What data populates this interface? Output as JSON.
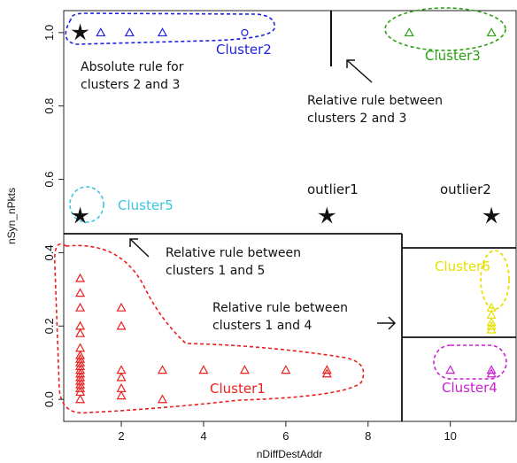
{
  "chart_data": {
    "type": "scatter",
    "xlabel": "nDiffDestAddr",
    "ylabel": "nSyn_nPkts",
    "xlim": [
      0.6,
      11.6
    ],
    "ylim": [
      -0.06,
      1.06
    ],
    "x_ticks": [
      2,
      4,
      6,
      8,
      10
    ],
    "y_ticks": [
      0.0,
      0.2,
      0.4,
      0.6,
      0.8,
      1.0
    ],
    "x_tick_labels": [
      "2",
      "4",
      "6",
      "8",
      "10"
    ],
    "y_tick_labels": [
      "0.0",
      "0.2",
      "0.4",
      "0.6",
      "0.8",
      "1.0"
    ],
    "grid": false,
    "colors": {
      "red": "#e8201c",
      "blue": "#1d23e0",
      "green": "#2aa012",
      "yellow": "#e6e000",
      "magenta": "#c81fd1",
      "cyan": "#3ac5e0",
      "black": "#111111"
    },
    "points": [
      {
        "x": 1,
        "y": 1.0,
        "color": "black",
        "marker": "star"
      },
      {
        "x": 1.5,
        "y": 1.0,
        "color": "blue",
        "marker": "triangle"
      },
      {
        "x": 2.2,
        "y": 1.0,
        "color": "blue",
        "marker": "triangle"
      },
      {
        "x": 3.0,
        "y": 1.0,
        "color": "blue",
        "marker": "triangle"
      },
      {
        "x": 5.0,
        "y": 1.0,
        "color": "blue",
        "marker": "circle"
      },
      {
        "x": 9.0,
        "y": 1.0,
        "color": "green",
        "marker": "triangle"
      },
      {
        "x": 11.0,
        "y": 1.0,
        "color": "green",
        "marker": "triangle"
      },
      {
        "x": 1.0,
        "y": 0.5,
        "color": "black",
        "marker": "star"
      },
      {
        "x": 7.0,
        "y": 0.5,
        "color": "black",
        "marker": "star"
      },
      {
        "x": 11.0,
        "y": 0.5,
        "color": "black",
        "marker": "star"
      },
      {
        "x": 1,
        "y": 0.33,
        "color": "red",
        "marker": "triangle"
      },
      {
        "x": 1,
        "y": 0.29,
        "color": "red",
        "marker": "triangle"
      },
      {
        "x": 1,
        "y": 0.25,
        "color": "red",
        "marker": "triangle"
      },
      {
        "x": 1,
        "y": 0.2,
        "color": "red",
        "marker": "triangle"
      },
      {
        "x": 1,
        "y": 0.18,
        "color": "red",
        "marker": "triangle"
      },
      {
        "x": 1,
        "y": 0.14,
        "color": "red",
        "marker": "triangle"
      },
      {
        "x": 1,
        "y": 0.12,
        "color": "red",
        "marker": "triangle"
      },
      {
        "x": 1,
        "y": 0.11,
        "color": "red",
        "marker": "triangle"
      },
      {
        "x": 1,
        "y": 0.1,
        "color": "red",
        "marker": "triangle"
      },
      {
        "x": 1,
        "y": 0.09,
        "color": "red",
        "marker": "triangle"
      },
      {
        "x": 1,
        "y": 0.08,
        "color": "red",
        "marker": "triangle"
      },
      {
        "x": 1,
        "y": 0.07,
        "color": "red",
        "marker": "triangle"
      },
      {
        "x": 1,
        "y": 0.06,
        "color": "red",
        "marker": "triangle"
      },
      {
        "x": 1,
        "y": 0.05,
        "color": "red",
        "marker": "triangle"
      },
      {
        "x": 1,
        "y": 0.04,
        "color": "red",
        "marker": "triangle"
      },
      {
        "x": 1,
        "y": 0.03,
        "color": "red",
        "marker": "triangle"
      },
      {
        "x": 1,
        "y": 0.02,
        "color": "red",
        "marker": "triangle"
      },
      {
        "x": 1,
        "y": 0.0,
        "color": "red",
        "marker": "triangle"
      },
      {
        "x": 2,
        "y": 0.25,
        "color": "red",
        "marker": "triangle"
      },
      {
        "x": 2,
        "y": 0.2,
        "color": "red",
        "marker": "triangle"
      },
      {
        "x": 2,
        "y": 0.08,
        "color": "red",
        "marker": "triangle"
      },
      {
        "x": 2,
        "y": 0.06,
        "color": "red",
        "marker": "triangle"
      },
      {
        "x": 2,
        "y": 0.03,
        "color": "red",
        "marker": "triangle"
      },
      {
        "x": 2,
        "y": 0.01,
        "color": "red",
        "marker": "triangle"
      },
      {
        "x": 3,
        "y": 0.08,
        "color": "red",
        "marker": "triangle"
      },
      {
        "x": 3,
        "y": 0.0,
        "color": "red",
        "marker": "triangle"
      },
      {
        "x": 4,
        "y": 0.08,
        "color": "red",
        "marker": "triangle"
      },
      {
        "x": 5,
        "y": 0.08,
        "color": "red",
        "marker": "triangle"
      },
      {
        "x": 6,
        "y": 0.08,
        "color": "red",
        "marker": "triangle"
      },
      {
        "x": 7,
        "y": 0.08,
        "color": "red",
        "marker": "triangle"
      },
      {
        "x": 7,
        "y": 0.07,
        "color": "red",
        "marker": "triangle"
      },
      {
        "x": 11,
        "y": 0.25,
        "color": "yellow",
        "marker": "triangle"
      },
      {
        "x": 11,
        "y": 0.23,
        "color": "yellow",
        "marker": "triangle"
      },
      {
        "x": 11,
        "y": 0.21,
        "color": "yellow",
        "marker": "triangle"
      },
      {
        "x": 11,
        "y": 0.2,
        "color": "yellow",
        "marker": "triangle"
      },
      {
        "x": 11,
        "y": 0.19,
        "color": "yellow",
        "marker": "triangle"
      },
      {
        "x": 10,
        "y": 0.08,
        "color": "magenta",
        "marker": "triangle"
      },
      {
        "x": 11,
        "y": 0.08,
        "color": "magenta",
        "marker": "triangle"
      },
      {
        "x": 11,
        "y": 0.07,
        "color": "magenta",
        "marker": "triangle"
      }
    ],
    "clusters": [
      {
        "name": "Cluster1",
        "color": "red"
      },
      {
        "name": "Cluster2",
        "color": "blue"
      },
      {
        "name": "Cluster3",
        "color": "green"
      },
      {
        "name": "Cluster4",
        "color": "magenta"
      },
      {
        "name": "Cluster5",
        "color": "cyan"
      },
      {
        "name": "Cluster6",
        "color": "yellow"
      }
    ],
    "outliers": [
      {
        "name": "outlier1"
      },
      {
        "name": "outlier2"
      }
    ],
    "annotations": {
      "absolute_rule": [
        "Absolute rule for",
        "clusters 2 and 3"
      ],
      "relative_2_3": [
        "Relative rule between",
        "clusters 2 and 3"
      ],
      "relative_1_5": [
        "Relative rule between",
        "clusters 1 and 5"
      ],
      "relative_1_4": [
        "Relative rule between",
        "clusters 1 and 4"
      ]
    }
  }
}
